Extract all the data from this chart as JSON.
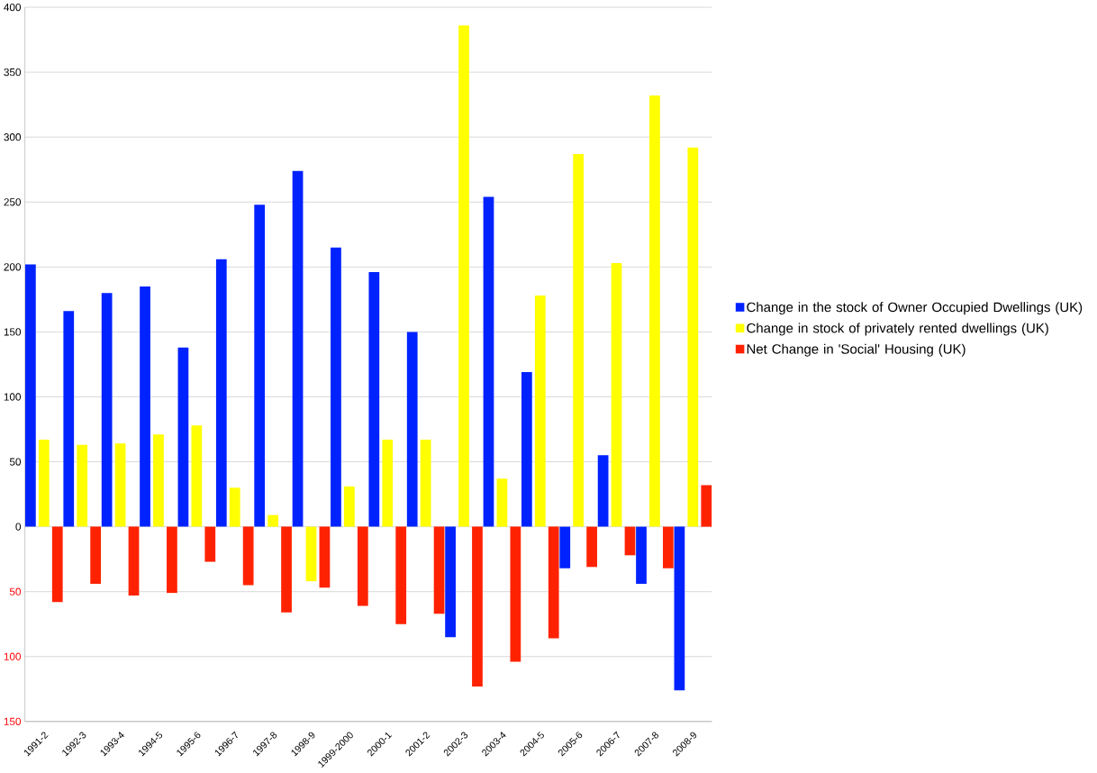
{
  "chart_data": {
    "type": "bar",
    "categories": [
      "1991-2",
      "1992-3",
      "1993-4",
      "1994-5",
      "1995-6",
      "1996-7",
      "1997-8",
      "1998-9",
      "1999-2000",
      "2000-1",
      "2001-2",
      "2002-3",
      "2003-4",
      "2004-5",
      "2005-6",
      "2006-7",
      "2007-8",
      "2008-9"
    ],
    "series": [
      {
        "name": "Change  in the stock of Owner Occupied Dwellings (UK)",
        "color": "#0022ff",
        "values": [
          202,
          166,
          180,
          185,
          138,
          206,
          248,
          274,
          215,
          196,
          150,
          -85,
          254,
          119,
          -32,
          55,
          -44,
          -126
        ]
      },
      {
        "name": "Change in stock of  privately rented dwellings (UK)",
        "color": "#ffff00",
        "values": [
          67,
          63,
          64,
          71,
          78,
          30,
          9,
          -42,
          31,
          67,
          67,
          386,
          37,
          178,
          287,
          203,
          332,
          292
        ]
      },
      {
        "name": "Net Change in 'Social' Housing (UK)",
        "color": "#ff2200",
        "values": [
          -58,
          -44,
          -53,
          -51,
          -27,
          -45,
          -66,
          -47,
          -61,
          -75,
          -67,
          -123,
          -104,
          -86,
          -31,
          -22,
          -32,
          32
        ]
      }
    ],
    "ylim": [
      -150,
      400
    ],
    "yticks": [
      {
        "value": -150,
        "label": "150"
      },
      {
        "value": -100,
        "label": "100"
      },
      {
        "value": -50,
        "label": "50"
      },
      0,
      50,
      100,
      150,
      200,
      250,
      300,
      350,
      400
    ],
    "grid": "y",
    "legend": "right"
  }
}
